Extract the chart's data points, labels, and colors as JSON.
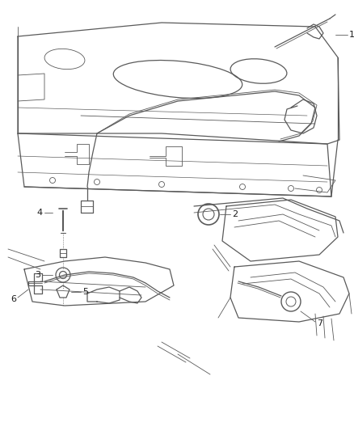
{
  "bg_color": "#ffffff",
  "line_color": "#5a5a5a",
  "label_color": "#1a1a1a",
  "fig_width": 4.38,
  "fig_height": 5.33,
  "dpi": 100
}
